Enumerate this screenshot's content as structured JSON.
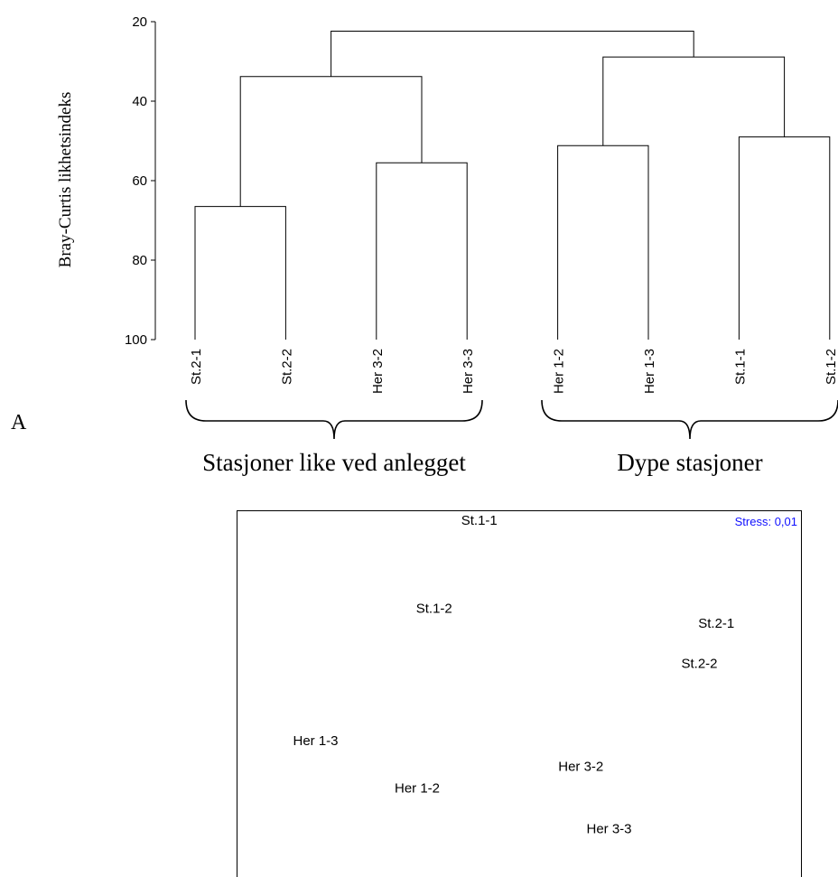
{
  "chart_data": [
    {
      "type": "dendrogram",
      "ylabel": "Bray-Curtis likhetsindeks",
      "ylim": [
        20,
        100
      ],
      "yticks": [
        20,
        40,
        60,
        80,
        100
      ],
      "y_inverted": true,
      "panel_label": "A",
      "leaves": [
        "St.2-1",
        "St.2-2",
        "Her 3-2",
        "Her 3-3",
        "Her 1-2",
        "Her 1-3",
        "St.1-1",
        "St.1-2"
      ],
      "merges": [
        {
          "left": "St.2-1",
          "right": "St.2-2",
          "similarity": 66.5
        },
        {
          "left": "Her 3-2",
          "right": "Her 3-3",
          "similarity": 55.5
        },
        {
          "left": "Her 1-2",
          "right": "Her 1-3",
          "similarity": 51.2
        },
        {
          "left": "St.1-1",
          "right": "St.1-2",
          "similarity": 49.0
        },
        {
          "left": "St.2-1 + St.2-2",
          "right": "Her 3-2 + Her 3-3",
          "similarity": 33.8
        },
        {
          "left": "Her 1-2 + Her 1-3",
          "right": "St.1-1 + St.1-2",
          "similarity": 28.9
        },
        {
          "left": "grupper 1",
          "right": "grupper 2",
          "similarity": 22.4
        }
      ],
      "groups": [
        {
          "label": "Stasjoner like ved anlegget",
          "members": [
            "St.2-1",
            "St.2-2",
            "Her 3-2",
            "Her 3-3"
          ]
        },
        {
          "label": "Dype stasjoner",
          "members": [
            "Her 1-2",
            "Her 1-3",
            "St.1-1",
            "St.1-2"
          ]
        }
      ]
    },
    {
      "type": "scatter",
      "annotation": "Stress: 0,01",
      "annotation_color": "#1010ff",
      "xlim": [
        0,
        100
      ],
      "ylim": [
        0,
        100
      ],
      "axes_visible": false,
      "points": [
        {
          "label": "St.1-1",
          "x": 43,
          "y": 96
        },
        {
          "label": "St.1-2",
          "x": 35,
          "y": 72
        },
        {
          "label": "St.2-1",
          "x": 85,
          "y": 68
        },
        {
          "label": "St.2-2",
          "x": 82,
          "y": 57
        },
        {
          "label": "Her 1-3",
          "x": 14,
          "y": 36
        },
        {
          "label": "Her 3-2",
          "x": 61,
          "y": 29
        },
        {
          "label": "Her 1-2",
          "x": 32,
          "y": 23
        },
        {
          "label": "Her 3-3",
          "x": 66,
          "y": 12
        }
      ]
    }
  ]
}
